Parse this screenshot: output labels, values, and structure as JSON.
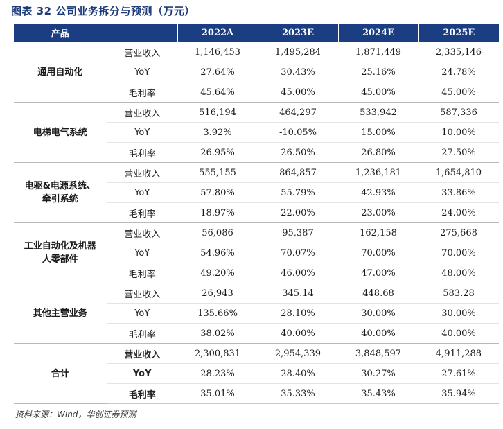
{
  "title": "图表 32 公司业务拆分与预测（万元）",
  "table": {
    "headers": [
      "产品",
      "",
      "2022A",
      "2023E",
      "2024E",
      "2025E"
    ],
    "groups": [
      {
        "product": "通用自动化",
        "rows": [
          {
            "metric": "营业收入",
            "values": [
              "1,146,453",
              "1,495,284",
              "1,871,449",
              "2,335,146"
            ]
          },
          {
            "metric": "YoY",
            "values": [
              "27.64%",
              "30.43%",
              "25.16%",
              "24.78%"
            ]
          },
          {
            "metric": "毛利率",
            "values": [
              "45.64%",
              "45.00%",
              "45.00%",
              "45.00%"
            ]
          }
        ]
      },
      {
        "product": "电梯电气系统",
        "rows": [
          {
            "metric": "营业收入",
            "values": [
              "516,194",
              "464,297",
              "533,942",
              "587,336"
            ]
          },
          {
            "metric": "YoY",
            "values": [
              "3.92%",
              "-10.05%",
              "15.00%",
              "10.00%"
            ]
          },
          {
            "metric": "毛利率",
            "values": [
              "26.95%",
              "26.50%",
              "26.80%",
              "27.50%"
            ]
          }
        ]
      },
      {
        "product": "电驱&电源系统、牵引系统",
        "product_lines": [
          "电驱&电源系统、",
          "牵引系统"
        ],
        "rows": [
          {
            "metric": "营业收入",
            "values": [
              "555,155",
              "864,857",
              "1,236,181",
              "1,654,810"
            ]
          },
          {
            "metric": "YoY",
            "values": [
              "57.80%",
              "55.79%",
              "42.93%",
              "33.86%"
            ]
          },
          {
            "metric": "毛利率",
            "values": [
              "18.97%",
              "22.00%",
              "23.00%",
              "24.00%"
            ]
          }
        ]
      },
      {
        "product": "工业自动化及机器人零部件",
        "product_lines": [
          "工业自动化及机器",
          "人零部件"
        ],
        "rows": [
          {
            "metric": "营业收入",
            "values": [
              "56,086",
              "95,387",
              "162,158",
              "275,668"
            ]
          },
          {
            "metric": "YoY",
            "values": [
              "54.96%",
              "70.07%",
              "70.00%",
              "70.00%"
            ]
          },
          {
            "metric": "毛利率",
            "values": [
              "49.20%",
              "46.00%",
              "47.00%",
              "48.00%"
            ]
          }
        ]
      },
      {
        "product": "其他主营业务",
        "rows": [
          {
            "metric": "营业收入",
            "values": [
              "26,943",
              "345.14",
              "448.68",
              "583.28"
            ]
          },
          {
            "metric": "YoY",
            "values": [
              "135.66%",
              "28.10%",
              "30.00%",
              "30.00%"
            ]
          },
          {
            "metric": "毛利率",
            "values": [
              "38.02%",
              "40.00%",
              "40.00%",
              "40.00%"
            ]
          }
        ]
      },
      {
        "product": "合计",
        "rows": [
          {
            "metric": "营业收入",
            "values": [
              "2,300,831",
              "2,954,339",
              "3,848,597",
              "4,911,288"
            ]
          },
          {
            "metric": "YoY",
            "values": [
              "28.23%",
              "28.40%",
              "30.27%",
              "27.61%"
            ]
          },
          {
            "metric": "毛利率",
            "values": [
              "35.01%",
              "35.33%",
              "35.43%",
              "35.94%"
            ]
          }
        ]
      }
    ]
  },
  "source": "资料来源：Wind，华创证券预测"
}
